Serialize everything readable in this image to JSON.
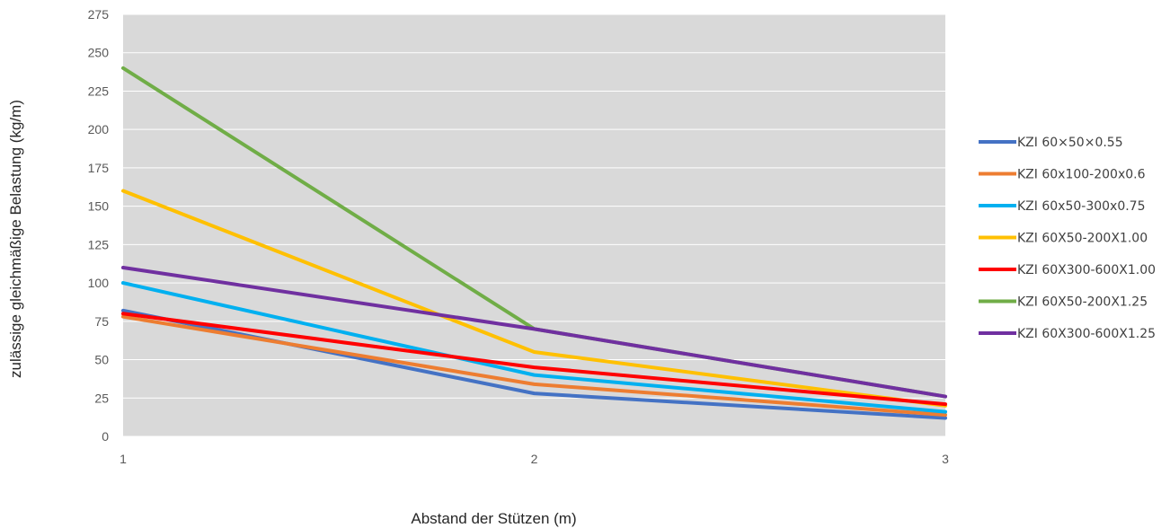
{
  "chart_data": {
    "type": "line",
    "title": "",
    "xlabel": "Abstand der Stützen  (m)",
    "ylabel": "zulässige gleichmäßige Belastung (kg/m)",
    "x": [
      1,
      2,
      3
    ],
    "x_tick_labels": [
      "1",
      "2",
      "3"
    ],
    "ylim": [
      0,
      275
    ],
    "y_ticks": [
      0,
      25,
      50,
      75,
      100,
      125,
      150,
      175,
      200,
      225,
      250,
      275
    ],
    "grid": true,
    "legend_position": "right",
    "plot_background": "#d9d9d9",
    "series": [
      {
        "name": "KZI 60×50×0.55",
        "color": "#4472c4",
        "values": [
          82,
          28,
          12
        ]
      },
      {
        "name": "KZI 60x100-200x0.6",
        "color": "#ed7d31",
        "values": [
          78,
          34,
          14
        ]
      },
      {
        "name": "KZI 60x50-300x0.75",
        "color": "#00b0f0",
        "values": [
          100,
          40,
          16
        ]
      },
      {
        "name": "KZI 60X50-200X1.00",
        "color": "#ffc000",
        "values": [
          160,
          55,
          20
        ]
      },
      {
        "name": "KZI 60X300-600X1.00",
        "color": "#ff0000",
        "values": [
          80,
          45,
          21
        ]
      },
      {
        "name": "KZI 60X50-200X1.25",
        "color": "#70ad47",
        "values": [
          240,
          70,
          26
        ]
      },
      {
        "name": "KZI 60X300-600X1.25",
        "color": "#7030a0",
        "values": [
          110,
          70,
          26
        ]
      }
    ]
  }
}
